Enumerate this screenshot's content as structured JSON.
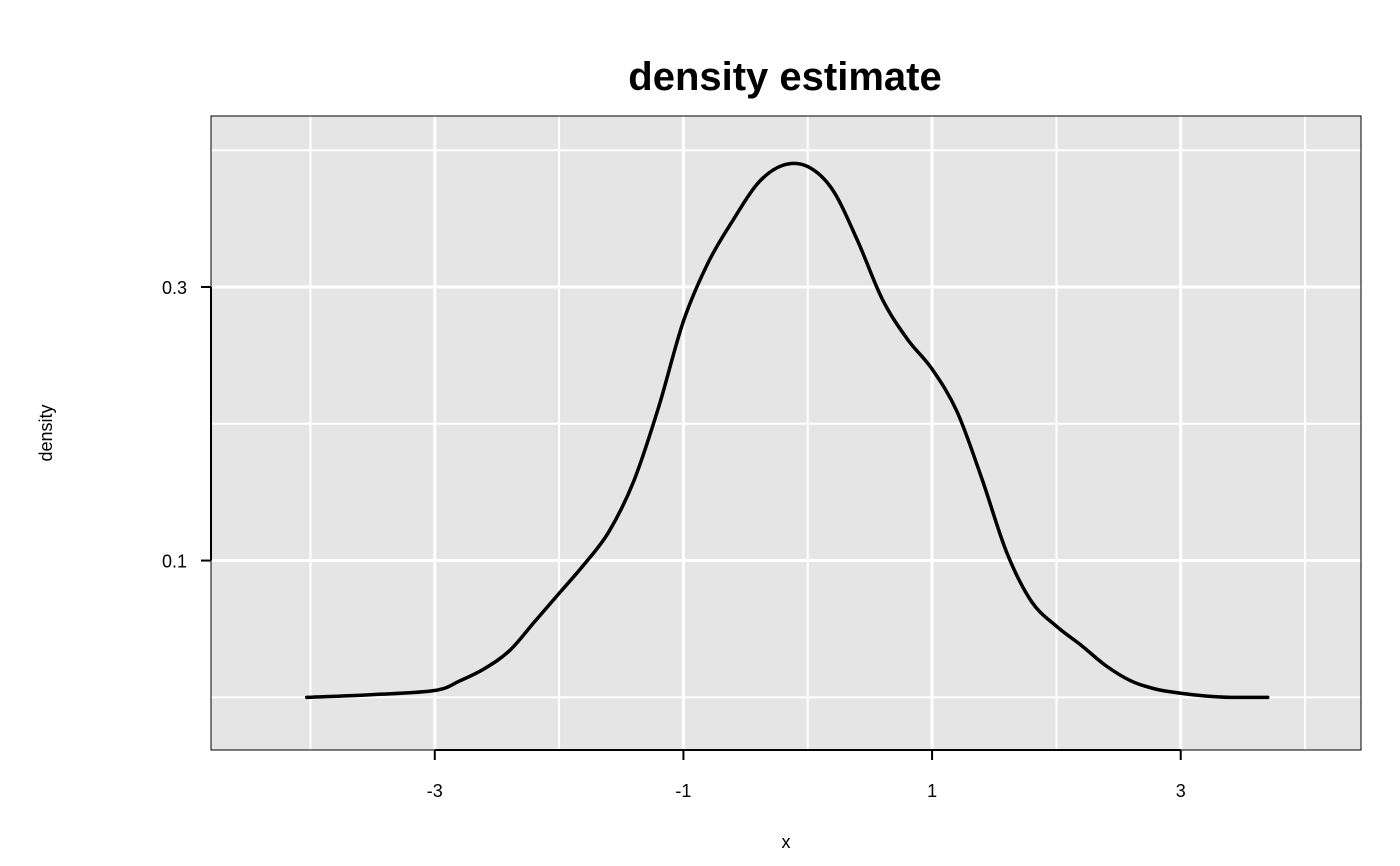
{
  "chart_data": {
    "type": "line",
    "title": "density estimate",
    "xlabel": "x",
    "ylabel": "density",
    "xlim": [
      -4.8,
      4.45
    ],
    "ylim": [
      -0.0385,
      0.425
    ],
    "grid": true,
    "background": "#e5e5e5",
    "grid_color": "#ffffff",
    "line_color": "#000000",
    "x_ticks": [
      -3,
      -1,
      1,
      3
    ],
    "x_tick_labels": [
      "-3",
      "-1",
      "1",
      "3"
    ],
    "y_ticks": [
      0.1,
      0.3
    ],
    "y_tick_labels": [
      "0.1",
      "0.3"
    ],
    "x_grid": [
      -4,
      -3,
      -2,
      -1,
      0,
      1,
      2,
      3,
      4
    ],
    "y_grid": [
      0.0,
      0.1,
      0.2,
      0.3,
      0.4
    ],
    "series": [
      {
        "x": [
          -4.03,
          -3.5,
          -3.0,
          -2.8,
          -2.6,
          -2.4,
          -2.2,
          -2.0,
          -1.8,
          -1.6,
          -1.4,
          -1.2,
          -1.0,
          -0.8,
          -0.6,
          -0.4,
          -0.2,
          0.0,
          0.2,
          0.4,
          0.6,
          0.8,
          1.0,
          1.2,
          1.4,
          1.6,
          1.8,
          2.0,
          2.2,
          2.4,
          2.6,
          2.8,
          3.0,
          3.2,
          3.4,
          3.7
        ],
        "y": [
          0.0,
          0.002,
          0.005,
          0.012,
          0.021,
          0.034,
          0.055,
          0.076,
          0.097,
          0.121,
          0.158,
          0.212,
          0.275,
          0.318,
          0.349,
          0.376,
          0.389,
          0.388,
          0.371,
          0.334,
          0.291,
          0.262,
          0.24,
          0.209,
          0.16,
          0.106,
          0.07,
          0.052,
          0.038,
          0.023,
          0.012,
          0.006,
          0.003,
          0.001,
          0.0,
          0.0
        ]
      }
    ]
  }
}
